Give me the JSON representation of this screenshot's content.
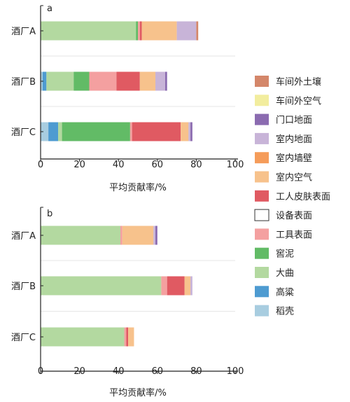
{
  "chart_data": [
    {
      "type": "bar",
      "orientation": "horizontal",
      "stacked": true,
      "panel_label": "a",
      "title": "",
      "xlabel": "平均贡献率/%",
      "ylabel": "",
      "xlim": [
        0,
        100
      ],
      "xticks": [
        "0",
        "20",
        "40",
        "60",
        "80",
        "100"
      ],
      "categories": [
        "酒厂A",
        "酒厂B",
        "酒厂C"
      ],
      "series": [
        {
          "name": "稻壳",
          "color": "#a8cde0",
          "values": [
            0,
            1,
            4
          ]
        },
        {
          "name": "高粱",
          "color": "#4e9bd1",
          "values": [
            0,
            2,
            5
          ]
        },
        {
          "name": "大曲",
          "color": "#b3d9a0",
          "values": [
            49,
            14,
            2
          ]
        },
        {
          "name": "窖泥",
          "color": "#62bb66",
          "values": [
            1,
            8,
            35
          ]
        },
        {
          "name": "工具表面",
          "color": "#f4a0a0",
          "values": [
            1,
            14,
            1
          ]
        },
        {
          "name": "设备表面",
          "color": "#ffffff",
          "values": [
            0,
            0,
            0
          ]
        },
        {
          "name": "工人皮肤表面",
          "color": "#e05a62",
          "values": [
            1,
            12,
            25
          ]
        },
        {
          "name": "室内空气",
          "color": "#f7c28c",
          "values": [
            18,
            8,
            4
          ]
        },
        {
          "name": "室内墙壁",
          "color": "#f59c5a",
          "values": [
            0,
            0,
            0
          ]
        },
        {
          "name": "室内地面",
          "color": "#c8b4d8",
          "values": [
            10,
            5,
            1
          ]
        },
        {
          "name": "门口地面",
          "color": "#8b6bb0",
          "values": [
            0,
            1,
            1
          ]
        },
        {
          "name": "车间外空气",
          "color": "#f2ed9e",
          "values": [
            0,
            0,
            0
          ]
        },
        {
          "name": "车间外土壤",
          "color": "#d4876a",
          "values": [
            1,
            0,
            0
          ]
        }
      ]
    },
    {
      "type": "bar",
      "orientation": "horizontal",
      "stacked": true,
      "panel_label": "b",
      "title": "",
      "xlabel": "平均贡献率/%",
      "ylabel": "",
      "xlim": [
        0,
        100
      ],
      "xticks": [
        "0",
        "20",
        "40",
        "60",
        "80",
        "100"
      ],
      "categories": [
        "酒厂A",
        "酒厂B",
        "酒厂C"
      ],
      "series": [
        {
          "name": "稻壳",
          "color": "#a8cde0",
          "values": [
            0,
            0,
            0
          ]
        },
        {
          "name": "高粱",
          "color": "#4e9bd1",
          "values": [
            0,
            0,
            0
          ]
        },
        {
          "name": "大曲",
          "color": "#b3d9a0",
          "values": [
            41,
            62,
            43
          ]
        },
        {
          "name": "窖泥",
          "color": "#62bb66",
          "values": [
            0,
            0,
            0
          ]
        },
        {
          "name": "工具表面",
          "color": "#f4a0a0",
          "values": [
            1,
            3,
            1
          ]
        },
        {
          "name": "设备表面",
          "color": "#ffffff",
          "values": [
            0,
            0,
            0
          ]
        },
        {
          "name": "工人皮肤表面",
          "color": "#e05a62",
          "values": [
            0,
            9,
            1
          ]
        },
        {
          "name": "室内空气",
          "color": "#f7c28c",
          "values": [
            16,
            3,
            3
          ]
        },
        {
          "name": "室内墙壁",
          "color": "#f59c5a",
          "values": [
            0,
            0,
            0
          ]
        },
        {
          "name": "室内地面",
          "color": "#c8b4d8",
          "values": [
            1,
            1,
            0
          ]
        },
        {
          "name": "门口地面",
          "color": "#8b6bb0",
          "values": [
            1,
            0,
            0
          ]
        },
        {
          "name": "车间外空气",
          "color": "#f2ed9e",
          "values": [
            0,
            0,
            0
          ]
        },
        {
          "name": "车间外土壤",
          "color": "#d4876a",
          "values": [
            0,
            0,
            0
          ]
        }
      ]
    }
  ],
  "legend": [
    {
      "label": "车间外土壤",
      "color": "#d4876a"
    },
    {
      "label": "车间外空气",
      "color": "#f2ed9e"
    },
    {
      "label": "门口地面",
      "color": "#8b6bb0"
    },
    {
      "label": "室内地面",
      "color": "#c8b4d8"
    },
    {
      "label": "室内墙壁",
      "color": "#f59c5a"
    },
    {
      "label": "室内空气",
      "color": "#f7c28c"
    },
    {
      "label": "工人皮肤表面",
      "color": "#e05a62"
    },
    {
      "label": "设备表面",
      "color": "#ffffff"
    },
    {
      "label": "工具表面",
      "color": "#f4a0a0"
    },
    {
      "label": "窖泥",
      "color": "#62bb66"
    },
    {
      "label": "大曲",
      "color": "#b3d9a0"
    },
    {
      "label": "高粱",
      "color": "#4e9bd1"
    },
    {
      "label": "稻壳",
      "color": "#a8cde0"
    }
  ]
}
